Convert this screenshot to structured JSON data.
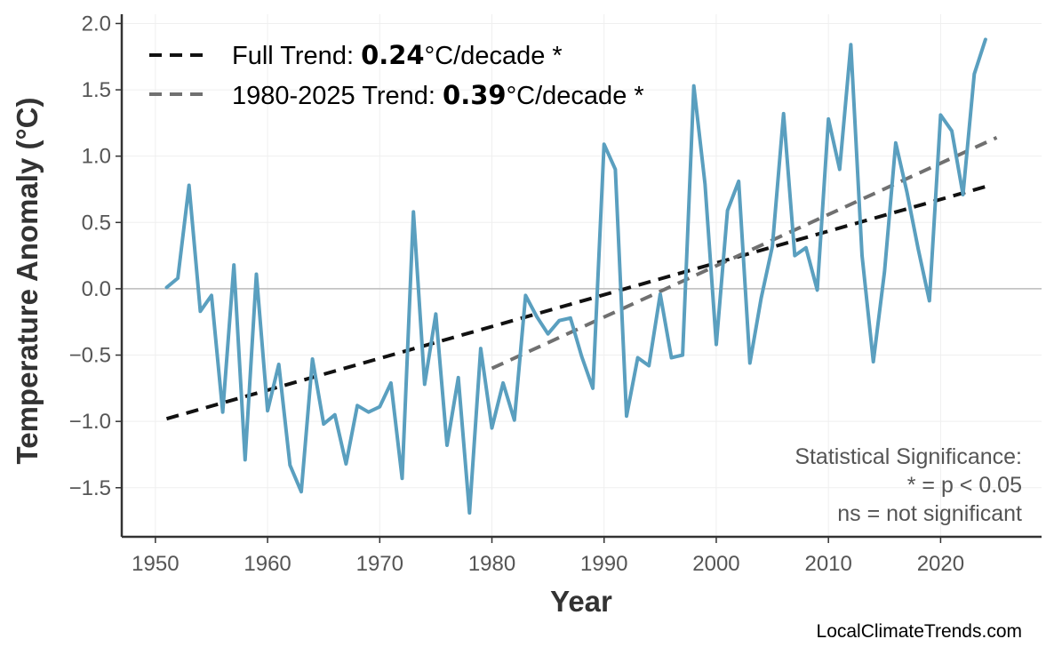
{
  "chart_data": {
    "type": "line",
    "title": "",
    "xlabel": "Year",
    "ylabel": "Temperature Anomaly (°C)",
    "xlim": [
      1947,
      2029
    ],
    "ylim": [
      -1.87,
      2.07
    ],
    "xticks": [
      1950,
      1960,
      1970,
      1980,
      1990,
      2000,
      2010,
      2020
    ],
    "yticks": [
      -1.5,
      -1.0,
      -0.5,
      0.0,
      0.5,
      1.0,
      1.5,
      2.0
    ],
    "ytick_labels": [
      "−1.5",
      "−1.0",
      "−0.5",
      "0.0",
      "0.5",
      "1.0",
      "1.5",
      "2.0"
    ],
    "grid": true,
    "zero_line": true,
    "legend_position": "top-left",
    "series": [
      {
        "color": "#5a9fbf",
        "x": [
          1951,
          1952,
          1953,
          1954,
          1955,
          1956,
          1957,
          1958,
          1959,
          1960,
          1961,
          1962,
          1963,
          1964,
          1965,
          1966,
          1967,
          1968,
          1969,
          1970,
          1971,
          1972,
          1973,
          1974,
          1975,
          1976,
          1977,
          1978,
          1979,
          1980,
          1981,
          1982,
          1983,
          1984,
          1985,
          1986,
          1987,
          1988,
          1989,
          1990,
          1991,
          1992,
          1993,
          1994,
          1995,
          1996,
          1997,
          1998,
          1999,
          2000,
          2001,
          2002,
          2003,
          2004,
          2005,
          2006,
          2007,
          2008,
          2009,
          2010,
          2011,
          2012,
          2013,
          2014,
          2015,
          2016,
          2017,
          2018,
          2019,
          2020,
          2021,
          2022,
          2023,
          2024
        ],
        "y": [
          0.01,
          0.08,
          0.78,
          -0.17,
          -0.05,
          -0.93,
          0.18,
          -1.29,
          0.11,
          -0.92,
          -0.57,
          -1.33,
          -1.53,
          -0.53,
          -1.02,
          -0.95,
          -1.32,
          -0.88,
          -0.93,
          -0.89,
          -0.71,
          -1.43,
          0.58,
          -0.72,
          -0.19,
          -1.18,
          -0.67,
          -1.69,
          -0.45,
          -1.05,
          -0.71,
          -0.99,
          -0.05,
          -0.21,
          -0.34,
          -0.24,
          -0.22,
          -0.51,
          -0.75,
          1.09,
          0.9,
          -0.96,
          -0.52,
          -0.58,
          -0.04,
          -0.52,
          -0.5,
          1.53,
          0.79,
          -0.42,
          0.59,
          0.81,
          -0.56,
          -0.07,
          0.32,
          1.32,
          0.25,
          0.31,
          -0.01,
          1.28,
          0.9,
          1.84,
          0.25,
          -0.55,
          0.13,
          1.1,
          0.73,
          0.3,
          -0.09,
          1.31,
          1.19,
          0.71,
          1.62,
          1.88
        ]
      }
    ],
    "trends": [
      {
        "label_prefix": "Full Trend: ",
        "rate": "0.24",
        "label_suffix": "°C/decade *",
        "color": "#111111",
        "x": [
          1951,
          2024
        ],
        "y": [
          -0.98,
          0.77
        ]
      },
      {
        "label_prefix": "1980-2025 Trend: ",
        "rate": "0.39",
        "label_suffix": "°C/decade *",
        "color": "#707070",
        "x": [
          1980,
          2025
        ],
        "y": [
          -0.6,
          1.14
        ]
      }
    ],
    "annotation": [
      "Statistical Significance:",
      "* = p < 0.05",
      "ns = not significant"
    ],
    "credit": "LocalClimateTrends.com"
  }
}
